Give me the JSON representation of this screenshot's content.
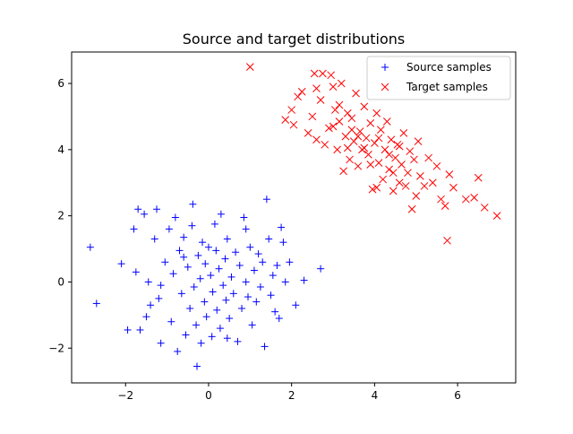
{
  "chart_data": {
    "type": "scatter",
    "title": "Source and target distributions",
    "xlabel": "",
    "ylabel": "",
    "xlim": [
      -3.3,
      7.4
    ],
    "ylim": [
      -3.05,
      6.95
    ],
    "xticks": [
      -2,
      0,
      2,
      4,
      6
    ],
    "yticks": [
      -2,
      0,
      2,
      4,
      6
    ],
    "grid": false,
    "legend": "top-right",
    "series": [
      {
        "name": "Source samples",
        "marker": "plus",
        "color": "#0000ff",
        "points": [
          [
            -2.85,
            1.05
          ],
          [
            -2.7,
            -0.65
          ],
          [
            -2.1,
            0.55
          ],
          [
            -1.95,
            -1.45
          ],
          [
            -1.7,
            2.2
          ],
          [
            -1.8,
            1.6
          ],
          [
            -1.75,
            0.3
          ],
          [
            -1.65,
            -1.45
          ],
          [
            -1.55,
            2.05
          ],
          [
            -1.5,
            -1.05
          ],
          [
            -1.45,
            0.0
          ],
          [
            -1.4,
            -0.7
          ],
          [
            -1.3,
            1.3
          ],
          [
            -1.25,
            2.2
          ],
          [
            -1.2,
            -0.5
          ],
          [
            -1.15,
            -1.85
          ],
          [
            -1.05,
            0.6
          ],
          [
            -0.95,
            1.6
          ],
          [
            -0.9,
            -1.2
          ],
          [
            -0.85,
            0.25
          ],
          [
            -0.8,
            1.95
          ],
          [
            -0.75,
            -2.1
          ],
          [
            -0.7,
            0.95
          ],
          [
            -0.65,
            -0.35
          ],
          [
            -0.6,
            1.35
          ],
          [
            -0.55,
            -1.6
          ],
          [
            -0.5,
            0.45
          ],
          [
            -0.45,
            -0.8
          ],
          [
            -0.4,
            1.7
          ],
          [
            -0.38,
            2.35
          ],
          [
            -0.35,
            -0.15
          ],
          [
            -0.3,
            -1.3
          ],
          [
            -0.28,
            -2.55
          ],
          [
            -0.25,
            0.8
          ],
          [
            -0.2,
            0.1
          ],
          [
            -0.18,
            -1.85
          ],
          [
            -0.15,
            1.2
          ],
          [
            -0.1,
            -0.6
          ],
          [
            -0.08,
            0.55
          ],
          [
            -0.05,
            -1.05
          ],
          [
            0.0,
            1.05
          ],
          [
            0.05,
            0.2
          ],
          [
            0.08,
            -1.65
          ],
          [
            0.1,
            -0.3
          ],
          [
            0.15,
            1.75
          ],
          [
            0.18,
            0.95
          ],
          [
            0.2,
            -0.85
          ],
          [
            0.25,
            0.4
          ],
          [
            0.28,
            -1.4
          ],
          [
            0.3,
            2.05
          ],
          [
            0.35,
            -0.1
          ],
          [
            0.4,
            0.7
          ],
          [
            0.42,
            -0.55
          ],
          [
            0.45,
            1.3
          ],
          [
            0.5,
            -1.1
          ],
          [
            0.55,
            0.15
          ],
          [
            0.6,
            -0.35
          ],
          [
            0.65,
            0.9
          ],
          [
            0.7,
            -1.8
          ],
          [
            0.75,
            0.5
          ],
          [
            0.8,
            -0.8
          ],
          [
            0.85,
            1.95
          ],
          [
            0.9,
            0.0
          ],
          [
            0.95,
            -0.45
          ],
          [
            1.0,
            1.05
          ],
          [
            1.05,
            -1.3
          ],
          [
            1.1,
            0.35
          ],
          [
            1.15,
            -0.6
          ],
          [
            1.2,
            0.85
          ],
          [
            1.25,
            -0.15
          ],
          [
            1.3,
            0.6
          ],
          [
            1.35,
            -1.95
          ],
          [
            1.4,
            2.5
          ],
          [
            1.45,
            1.3
          ],
          [
            1.5,
            -0.4
          ],
          [
            1.55,
            0.2
          ],
          [
            1.6,
            -0.9
          ],
          [
            1.65,
            0.5
          ],
          [
            1.7,
            -1.1
          ],
          [
            1.75,
            1.65
          ],
          [
            1.8,
            1.2
          ],
          [
            1.85,
            0.0
          ],
          [
            1.95,
            0.6
          ],
          [
            2.1,
            -0.7
          ],
          [
            2.3,
            0.05
          ],
          [
            2.7,
            0.4
          ],
          [
            0.45,
            -1.7
          ],
          [
            -0.6,
            0.75
          ],
          [
            0.9,
            1.6
          ],
          [
            -1.15,
            -0.1
          ]
        ]
      },
      {
        "name": "Target samples",
        "marker": "x",
        "color": "#ff0000",
        "points": [
          [
            1.0,
            6.5
          ],
          [
            2.0,
            5.2
          ],
          [
            1.85,
            4.9
          ],
          [
            2.05,
            4.75
          ],
          [
            2.15,
            5.6
          ],
          [
            2.25,
            5.75
          ],
          [
            2.4,
            4.5
          ],
          [
            2.5,
            5.0
          ],
          [
            2.55,
            6.3
          ],
          [
            2.6,
            4.3
          ],
          [
            2.7,
            5.5
          ],
          [
            2.75,
            6.3
          ],
          [
            2.8,
            4.15
          ],
          [
            2.9,
            4.65
          ],
          [
            2.95,
            6.25
          ],
          [
            3.0,
            5.9
          ],
          [
            3.05,
            5.2
          ],
          [
            3.1,
            4.0
          ],
          [
            3.15,
            4.85
          ],
          [
            3.2,
            6.0
          ],
          [
            3.25,
            3.35
          ],
          [
            3.3,
            4.4
          ],
          [
            3.35,
            5.1
          ],
          [
            3.4,
            3.7
          ],
          [
            3.45,
            4.95
          ],
          [
            3.5,
            4.25
          ],
          [
            3.55,
            5.7
          ],
          [
            3.6,
            3.5
          ],
          [
            3.65,
            4.55
          ],
          [
            3.7,
            4.0
          ],
          [
            3.75,
            5.3
          ],
          [
            3.8,
            4.35
          ],
          [
            3.85,
            3.85
          ],
          [
            3.9,
            4.8
          ],
          [
            3.95,
            2.8
          ],
          [
            4.0,
            4.2
          ],
          [
            4.05,
            5.1
          ],
          [
            4.1,
            3.6
          ],
          [
            4.15,
            4.6
          ],
          [
            4.2,
            3.1
          ],
          [
            4.25,
            4.0
          ],
          [
            4.3,
            4.85
          ],
          [
            4.35,
            3.4
          ],
          [
            4.4,
            4.3
          ],
          [
            4.45,
            2.75
          ],
          [
            4.5,
            3.75
          ],
          [
            4.55,
            4.15
          ],
          [
            4.6,
            3.0
          ],
          [
            4.65,
            3.55
          ],
          [
            4.7,
            4.5
          ],
          [
            4.75,
            2.9
          ],
          [
            4.8,
            3.3
          ],
          [
            4.85,
            3.95
          ],
          [
            4.9,
            2.2
          ],
          [
            4.95,
            3.7
          ],
          [
            5.0,
            2.6
          ],
          [
            5.05,
            4.25
          ],
          [
            5.1,
            3.2
          ],
          [
            5.2,
            2.9
          ],
          [
            5.3,
            3.75
          ],
          [
            5.4,
            3.0
          ],
          [
            5.5,
            3.5
          ],
          [
            5.6,
            2.5
          ],
          [
            5.7,
            2.3
          ],
          [
            5.8,
            3.25
          ],
          [
            5.9,
            2.85
          ],
          [
            5.75,
            1.25
          ],
          [
            6.2,
            2.5
          ],
          [
            6.4,
            2.55
          ],
          [
            6.5,
            3.15
          ],
          [
            6.65,
            2.25
          ],
          [
            6.95,
            2.0
          ],
          [
            3.0,
            4.7
          ],
          [
            3.35,
            4.05
          ],
          [
            3.6,
            4.4
          ],
          [
            3.9,
            3.55
          ],
          [
            4.1,
            4.35
          ],
          [
            4.35,
            3.85
          ],
          [
            4.6,
            4.1
          ],
          [
            2.6,
            5.85
          ],
          [
            3.15,
            5.35
          ],
          [
            3.75,
            4.05
          ],
          [
            4.45,
            3.3
          ],
          [
            4.05,
            2.85
          ],
          [
            3.45,
            4.6
          ]
        ]
      }
    ]
  }
}
